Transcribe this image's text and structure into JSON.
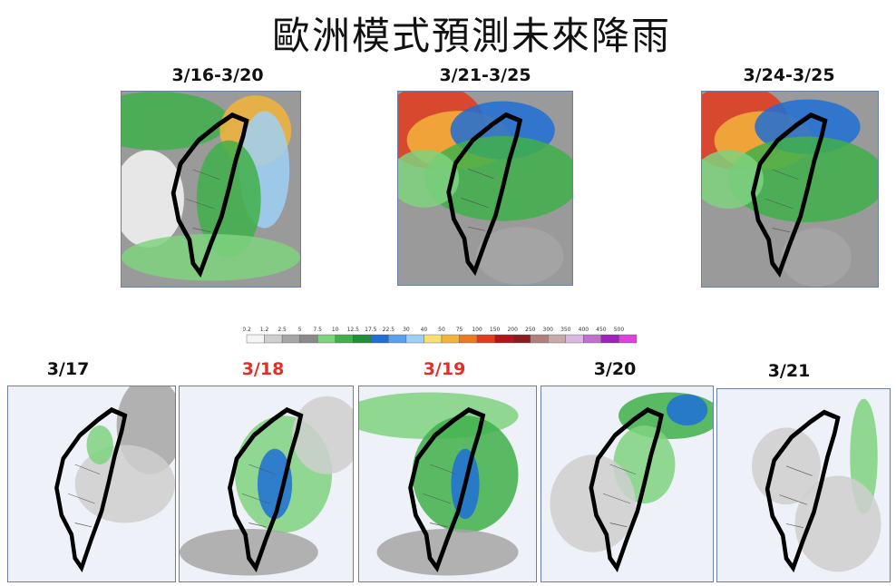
{
  "header": {
    "title": "歐洲模式預測未來降雨"
  },
  "top_panels": [
    "3/16-3/20",
    "3/21-3/25",
    "3/24-3/25"
  ],
  "colorbar": [
    "0.2",
    "1.2",
    "2.5",
    "5",
    "7.5",
    "10",
    "12.5",
    "17.5",
    "22.5",
    "30",
    "40",
    "50",
    "75",
    "100",
    "150",
    "200",
    "250",
    "300",
    "350",
    "400",
    "450",
    "500"
  ],
  "bottom_panels": [
    "3/17",
    "3/18",
    "3/19",
    "3/20",
    "3/21"
  ]
}
